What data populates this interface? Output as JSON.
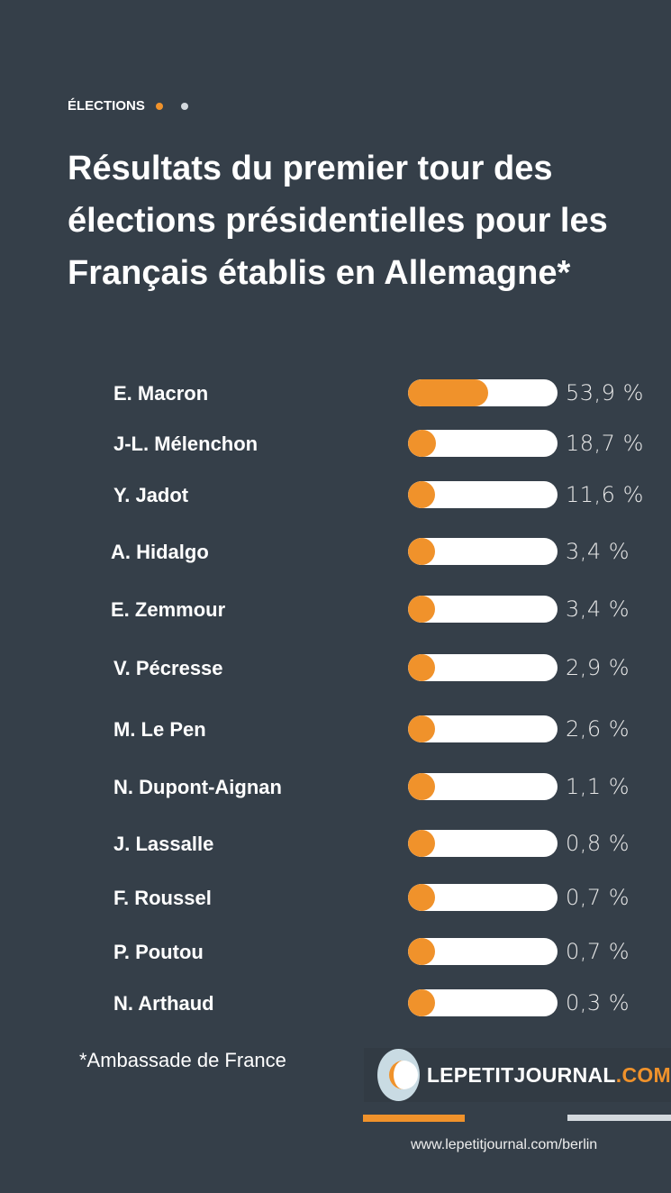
{
  "kicker": "ÉLECTIONS",
  "title": "Résultats du premier tour des élections présidentielles pour les Français établis en Allemagne*",
  "colors": {
    "background": "#353f49",
    "accent": "#f0922b",
    "track": "#ffffff",
    "secondary": "#d3d9de"
  },
  "chart_data": {
    "type": "bar",
    "orientation": "horizontal",
    "categories": [
      "E. Macron",
      "J-L. Mélenchon",
      "Y. Jadot",
      "A. Hidalgo",
      "E. Zemmour",
      "V. Pécresse",
      "M. Le Pen",
      "N. Dupont-Aignan",
      "J. Lassalle",
      "F. Roussel",
      "P. Poutou",
      "N. Arthaud"
    ],
    "values": [
      53.9,
      18.7,
      11.6,
      3.4,
      3.4,
      2.9,
      2.6,
      1.1,
      0.8,
      0.7,
      0.7,
      0.3
    ],
    "labels": [
      "53,9 %",
      "18,7 %",
      "11,6 %",
      "3,4 %",
      "3,4 %",
      "2,9 %",
      "2,6 %",
      "1,1 %",
      "0,8 %",
      "0,7 %",
      "0,7 %",
      "0,3 %"
    ],
    "xlim": [
      0,
      100
    ]
  },
  "source": "*Ambassade de France",
  "logo": {
    "name": "LEPETITJOURNAL",
    "suffix": ".COM"
  },
  "url": "www.lepetitjournal.com/berlin"
}
